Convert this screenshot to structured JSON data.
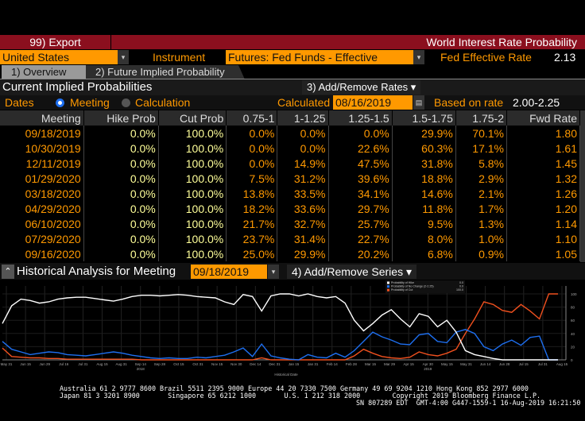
{
  "header": {
    "export_label": "99) Export",
    "title": "World Interest Rate Probability"
  },
  "controls": {
    "country": "United States",
    "instrument_label": "Instrument",
    "instrument": "Futures: Fed Funds - Effective",
    "fed_rate_label": "Fed Effective Rate",
    "fed_rate": "2.13"
  },
  "tabs": [
    {
      "label": "1) Overview"
    },
    {
      "label": "2) Future Implied Probability"
    }
  ],
  "section": {
    "title": "Current Implied Probabilities",
    "add_remove": "3) Add/Remove Rates ▾"
  },
  "dates": {
    "label": "Dates",
    "opt_meeting": "Meeting",
    "opt_calc": "Calculation",
    "calculated_label": "Calculated",
    "calculated": "08/16/2019",
    "based_label": "Based on rate",
    "based": "2.00-2.25"
  },
  "table": {
    "headers": [
      "Meeting",
      "Hike Prob",
      "Cut Prob",
      "0.75-1",
      "1-1.25",
      "1.25-1.5",
      "1.5-1.75",
      "1.75-2",
      "Fwd Rate"
    ],
    "rows": [
      [
        "09/18/2019",
        "0.0%",
        "100.0%",
        "0.0%",
        "0.0%",
        "0.0%",
        "29.9%",
        "70.1%",
        "1.80"
      ],
      [
        "10/30/2019",
        "0.0%",
        "100.0%",
        "0.0%",
        "0.0%",
        "22.6%",
        "60.3%",
        "17.1%",
        "1.61"
      ],
      [
        "12/11/2019",
        "0.0%",
        "100.0%",
        "0.0%",
        "14.9%",
        "47.5%",
        "31.8%",
        "5.8%",
        "1.45"
      ],
      [
        "01/29/2020",
        "0.0%",
        "100.0%",
        "7.5%",
        "31.2%",
        "39.6%",
        "18.8%",
        "2.9%",
        "1.32"
      ],
      [
        "03/18/2020",
        "0.0%",
        "100.0%",
        "13.8%",
        "33.5%",
        "34.1%",
        "14.6%",
        "2.1%",
        "1.26"
      ],
      [
        "04/29/2020",
        "0.0%",
        "100.0%",
        "18.2%",
        "33.6%",
        "29.7%",
        "11.8%",
        "1.7%",
        "1.20"
      ],
      [
        "06/10/2020",
        "0.0%",
        "100.0%",
        "21.7%",
        "32.7%",
        "25.7%",
        "9.5%",
        "1.3%",
        "1.14"
      ],
      [
        "07/29/2020",
        "0.0%",
        "100.0%",
        "23.7%",
        "31.4%",
        "22.7%",
        "8.0%",
        "1.0%",
        "1.10"
      ],
      [
        "09/16/2020",
        "0.0%",
        "100.0%",
        "25.0%",
        "29.9%",
        "20.2%",
        "6.8%",
        "0.9%",
        "1.05"
      ]
    ]
  },
  "historical": {
    "title": "Historical Analysis for Meeting",
    "meeting": "09/18/2019",
    "add_remove": "4) Add/Remove Series ▾"
  },
  "chart_data": {
    "type": "line",
    "xlabel": "Historical Date",
    "ylim": [
      0,
      100
    ],
    "yticks": [
      "0",
      "20",
      "40",
      "60",
      "80",
      "100"
    ],
    "xticks": [
      "May 31",
      "Jun 15",
      "Jun 29",
      "Jul 16",
      "Jul 31",
      "Aug 15",
      "Aug 31",
      "Sep 14",
      "Sep 28",
      "Oct 15",
      "Oct 31",
      "Nov 15",
      "Nov 30",
      "Dec 14",
      "Dec 31",
      "Jan 15",
      "Jan 31",
      "Feb 14",
      "Feb 28",
      "Mar 15",
      "Mar 29",
      "Apr 15",
      "Apr 30",
      "May 15",
      "May 31",
      "Jun 14",
      "Jun 28",
      "Jul 15",
      "Jul 31",
      "Aug 15"
    ],
    "years": [
      {
        "label": "2018",
        "under": "Sep 14"
      },
      {
        "label": "2019",
        "under": "Apr 30"
      }
    ],
    "legend_position": "top-right",
    "series": [
      {
        "name": "Probability of Hike",
        "last": "0.0",
        "color": "#ffffff",
        "values": [
          55,
          82,
          92,
          90,
          86,
          88,
          92,
          94,
          95,
          95,
          93,
          91,
          89,
          92,
          96,
          98,
          98,
          97,
          98,
          99,
          98,
          96,
          95,
          94,
          88,
          84,
          99,
          96,
          74,
          97,
          100,
          100,
          97,
          100,
          96,
          94,
          96,
          86,
          60,
          44,
          55,
          68,
          76,
          62,
          50,
          70,
          66,
          50,
          60,
          42,
          14,
          8,
          5,
          2,
          0,
          0,
          0,
          0,
          0,
          0,
          0
        ]
      },
      {
        "name": "Probability of No Change (2-2.25)",
        "last": "0.0",
        "color": "#1e6ff0",
        "values": [
          28,
          16,
          12,
          8,
          10,
          12,
          11,
          8,
          7,
          6,
          8,
          10,
          12,
          10,
          7,
          5,
          3,
          2,
          3,
          2,
          2,
          4,
          3,
          5,
          7,
          12,
          18,
          5,
          24,
          6,
          3,
          1,
          0,
          8,
          4,
          3,
          10,
          4,
          14,
          28,
          42,
          35,
          30,
          24,
          23,
          38,
          40,
          28,
          26,
          42,
          46,
          40,
          20,
          14,
          24,
          30,
          22,
          34,
          36,
          0,
          0
        ]
      },
      {
        "name": "Probability of Cut",
        "last": "100.0",
        "color": "#f0501e",
        "values": [
          18,
          5,
          4,
          3,
          3,
          2,
          2,
          1,
          1,
          1,
          1,
          1,
          1,
          1,
          1,
          0,
          0,
          0,
          0,
          0,
          0,
          0,
          0,
          0,
          0,
          0,
          0,
          0,
          3,
          0,
          0,
          0,
          0,
          0,
          0,
          0,
          0,
          0,
          6,
          16,
          10,
          5,
          3,
          2,
          4,
          12,
          8,
          6,
          10,
          16,
          40,
          62,
          88,
          84,
          75,
          72,
          84,
          74,
          62,
          100,
          100
        ]
      }
    ]
  },
  "footer": {
    "line1": "Australia 61 2 9777 8600 Brazil 5511 2395 9000 Europe 44 20 7330 7500 Germany 49 69 9204 1210 Hong Kong 852 2977 6000",
    "line2": "Japan 81 3 3201 8900       Singapore 65 6212 1000       U.S. 1 212 318 2000        Copyright 2019 Bloomberg Finance L.P.",
    "line3": "SN 807289 EDT  GMT-4:00 G447-1559-1 16-Aug-2019 16:21:50"
  }
}
